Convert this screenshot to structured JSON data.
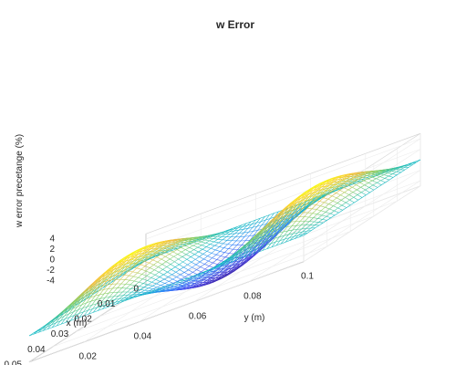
{
  "chart_data": {
    "type": "surface",
    "title": "w Error",
    "xlabel": "x (m)",
    "ylabel": "y (m)",
    "zlabel": "w error precetange (%)",
    "x_range": [
      0,
      0.05
    ],
    "y_range": [
      0,
      0.1
    ],
    "z_range": [
      -5,
      5
    ],
    "x_ticks": [
      "0",
      "0.01",
      "0.02",
      "0.03",
      "0.04",
      "0.05"
    ],
    "y_ticks": [
      "0",
      "0.02",
      "0.04",
      "0.06",
      "0.08",
      "0.1"
    ],
    "z_ticks": [
      "-4",
      "-2",
      "0",
      "2",
      "4"
    ],
    "grid": true,
    "colormap": "parula",
    "surface_model": "z = 5.4*sin(pi*x/0.05)*sin(3*pi*y/0.1)"
  }
}
